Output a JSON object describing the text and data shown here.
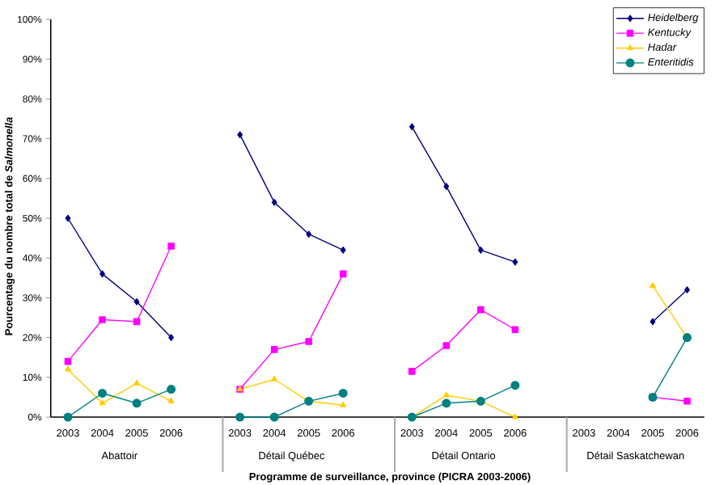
{
  "chart_data": {
    "type": "line",
    "xlabel": "**Programme de surveillance, province (PICRA 2003-2006)**",
    "ylabel": "Pourcentage du nombre total de *Salmonella*",
    "categories": [
      "2003",
      "2004",
      "2005",
      "2006",
      "2003",
      "2004",
      "2005",
      "2006",
      "2003",
      "2004",
      "2005",
      "2006",
      "2003",
      "2004",
      "2005",
      "2006"
    ],
    "annotations": [
      "Abattoir",
      "Détail Québec",
      "Détail Ontario",
      "Détail Saskatchewan"
    ],
    "ylim": [
      0,
      100
    ],
    "yticks": [
      {
        "value": 0,
        "label": "0%"
      },
      {
        "value": 10,
        "label": "10%"
      },
      {
        "value": 20,
        "label": "20%"
      },
      {
        "value": 30,
        "label": "30%"
      },
      {
        "value": 40,
        "label": "40%"
      },
      {
        "value": 50,
        "label": "50%"
      },
      {
        "value": 60,
        "label": "60%"
      },
      {
        "value": 70,
        "label": "70%"
      },
      {
        "value": 80,
        "label": "80%"
      },
      {
        "value": 90,
        "label": "90%"
      },
      {
        "value": 100,
        "label": "100%"
      }
    ],
    "legend": "top right",
    "grid": false,
    "series": [
      {
        "name": "Heidelberg",
        "color": "#000080",
        "marker": "diamond",
        "values": [
          50,
          36,
          29,
          20,
          71,
          54,
          46,
          42,
          73,
          58,
          42,
          39,
          null,
          null,
          24,
          32
        ]
      },
      {
        "name": "Kentucky",
        "color": "#ff00ff",
        "marker": "square",
        "values": [
          14,
          24.5,
          24,
          43,
          7,
          17,
          19,
          36,
          11.5,
          18,
          27,
          22,
          null,
          null,
          5,
          4
        ]
      },
      {
        "name": "Hadar",
        "color": "#ffcc00",
        "marker": "triangle",
        "values": [
          12,
          3.5,
          8.5,
          4,
          7,
          9.5,
          4,
          3,
          0,
          5.5,
          4,
          0,
          null,
          null,
          33,
          20
        ]
      },
      {
        "name": "Enteritidis",
        "color": "#008080",
        "marker": "circle",
        "values": [
          0,
          6,
          3.5,
          7,
          0,
          0,
          4,
          6,
          0,
          3.5,
          4,
          8,
          null,
          null,
          5,
          20
        ]
      }
    ]
  }
}
